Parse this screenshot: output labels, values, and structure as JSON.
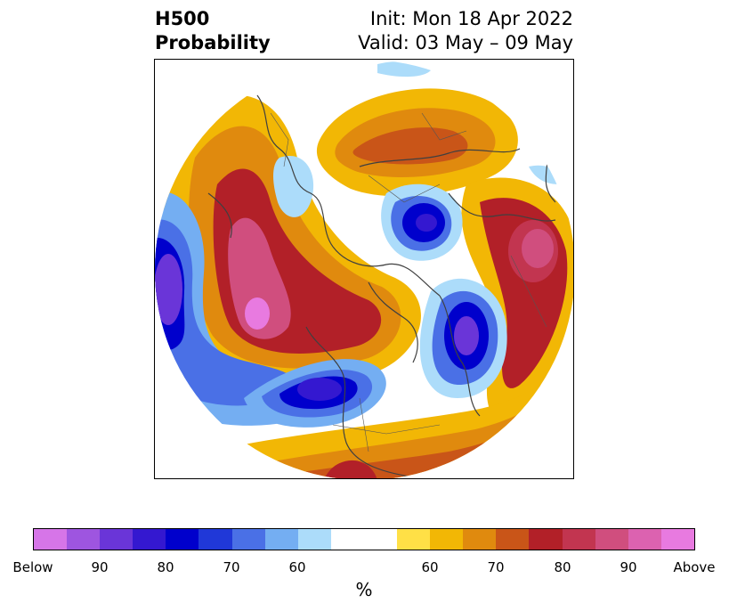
{
  "header": {
    "title_line1": "H500",
    "title_line2": "Probability",
    "init": "Init: Mon 18 Apr 2022",
    "valid": "Valid: 03 May – 09 May"
  },
  "map": {
    "projection": "north-polar",
    "description_colors": {
      "below_strong": "#0000cc",
      "above_strong": "#b22028",
      "above_peak": "#e679e0",
      "below_peak": "#7b3ee0"
    }
  },
  "colorbar": {
    "segments": [
      "#d675e8",
      "#9e55e0",
      "#6a35d8",
      "#3418d0",
      "#0000cc",
      "#2038d8",
      "#4a70e6",
      "#74aef2",
      "#acdcfa",
      "#ffffff",
      "#ffe046",
      "#f2b705",
      "#e08a0e",
      "#c95518",
      "#b22028",
      "#c23550",
      "#d04e7e",
      "#dc62b0",
      "#e87ae0"
    ],
    "tick_labels": [
      "Below",
      "90",
      "80",
      "70",
      "60",
      "60",
      "70",
      "80",
      "90",
      "Above"
    ],
    "unit": "%"
  }
}
